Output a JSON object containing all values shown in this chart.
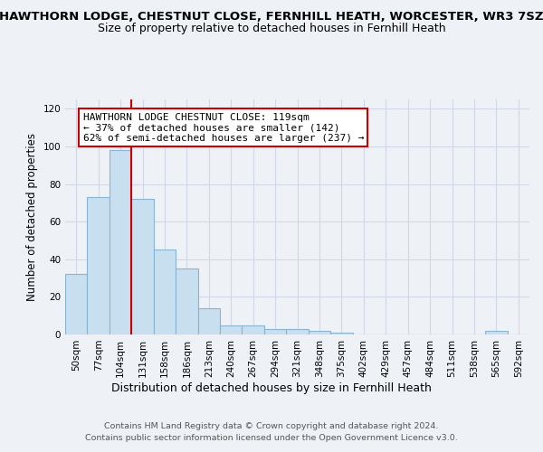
{
  "title_line1": "HAWTHORN LODGE, CHESTNUT CLOSE, FERNHILL HEATH, WORCESTER, WR3 7SZ",
  "title_line2": "Size of property relative to detached houses in Fernhill Heath",
  "xlabel": "Distribution of detached houses by size in Fernhill Heath",
  "ylabel": "Number of detached properties",
  "footer_line1": "Contains HM Land Registry data © Crown copyright and database right 2024.",
  "footer_line2": "Contains public sector information licensed under the Open Government Licence v3.0.",
  "bar_labels": [
    "50sqm",
    "77sqm",
    "104sqm",
    "131sqm",
    "158sqm",
    "186sqm",
    "213sqm",
    "240sqm",
    "267sqm",
    "294sqm",
    "321sqm",
    "348sqm",
    "375sqm",
    "402sqm",
    "429sqm",
    "457sqm",
    "484sqm",
    "511sqm",
    "538sqm",
    "565sqm",
    "592sqm"
  ],
  "bar_values": [
    32,
    73,
    98,
    72,
    45,
    35,
    14,
    5,
    5,
    3,
    3,
    2,
    1,
    0,
    0,
    0,
    0,
    0,
    0,
    2,
    0
  ],
  "bar_color": "#c8dff0",
  "bar_edge_color": "#8ab4d4",
  "vline_color": "#cc0000",
  "annotation_title": "HAWTHORN LODGE CHESTNUT CLOSE: 119sqm",
  "annotation_line2": "← 37% of detached houses are smaller (142)",
  "annotation_line3": "62% of semi-detached houses are larger (237) →",
  "annotation_box_color": "#ffffff",
  "annotation_border_color": "#cc0000",
  "ylim": [
    0,
    125
  ],
  "yticks": [
    0,
    20,
    40,
    60,
    80,
    100,
    120
  ],
  "background_color": "#eef2f7",
  "grid_color": "#d0d8e8",
  "title1_fontsize": 9.5,
  "title2_fontsize": 9.0,
  "ylabel_fontsize": 8.5,
  "xlabel_fontsize": 9.0,
  "footer_fontsize": 6.8,
  "tick_fontsize": 7.5,
  "annot_fontsize": 8.0
}
